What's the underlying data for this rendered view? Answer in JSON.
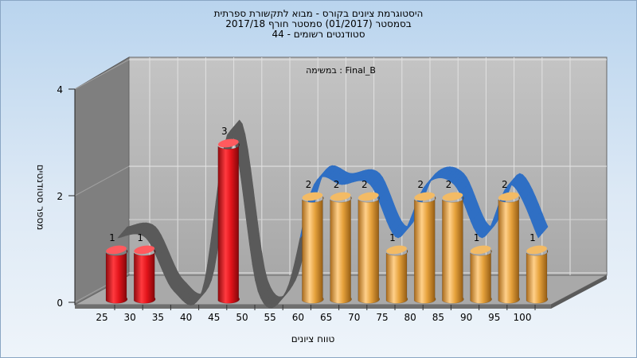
{
  "chart_title": {
    "line1": "היסטוגרמת ציונים בקורס - מבוא לתקשורת ספרתית",
    "line2": "בסמסטר  (01/2017)  סמסטר חורף 2017/18",
    "line3": "סטודנטים רשומים - 44"
  },
  "subtitle": "Final_B : במשימה",
  "colors": {
    "failing_bar": "#e3141b",
    "passing_bar": "#e6a23c",
    "back_wall": "#b8b8b8",
    "left_wall": "#7f7f7f",
    "floor": "#a9a9a9",
    "curve_gray": "#5a5a5a",
    "curve_blue": "#2f6fc4"
  },
  "chart_data": {
    "type": "bar",
    "title": "היסטוגרמת ציונים בקורס - מבוא לתקשורת ספרתית",
    "xlabel": "טווח ציונים",
    "ylabel": "מספר סטודנטים",
    "categories": [
      "25",
      "30",
      "35",
      "40",
      "45",
      "50",
      "55",
      "60",
      "65",
      "70",
      "75",
      "80",
      "85",
      "90",
      "95",
      "100"
    ],
    "values": [
      1,
      1,
      0,
      0,
      3,
      0,
      0,
      2,
      2,
      2,
      1,
      2,
      2,
      1,
      2,
      1
    ],
    "ylim": [
      0,
      4
    ],
    "yticks": [
      0,
      2,
      4
    ],
    "bar_groups": {
      "failing": [
        "25",
        "30",
        "35",
        "40",
        "45",
        "50"
      ],
      "passing": [
        "55",
        "60",
        "65",
        "70",
        "75",
        "80",
        "85",
        "90",
        "95",
        "100"
      ]
    },
    "grid": true,
    "three_d": true
  }
}
